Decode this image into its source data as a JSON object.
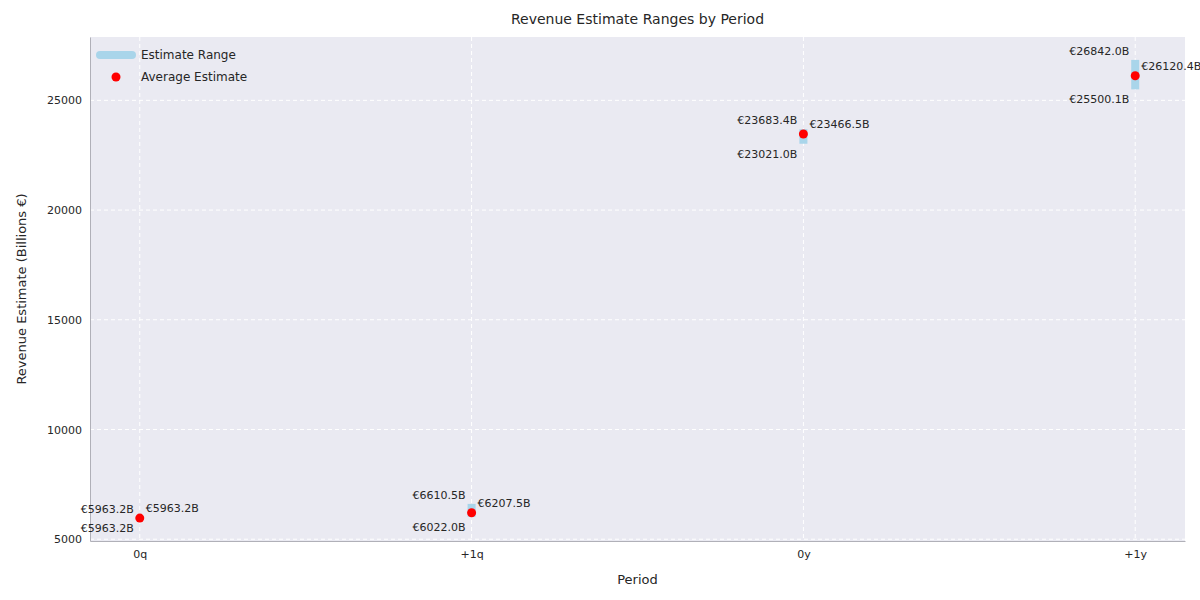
{
  "chart_data": {
    "type": "range",
    "title": "Revenue Estimate Ranges by Period",
    "x_label": "Period",
    "y_label": "Revenue Estimate (Billions €)",
    "categories": [
      "0q",
      "+1q",
      "0y",
      "+1y"
    ],
    "series": [
      {
        "name": "Estimate Range",
        "color": "#a9d5ea",
        "type": "range",
        "low": [
          5963.2,
          6022.0,
          23021.0,
          25500.1
        ],
        "high": [
          5963.2,
          6610.5,
          23683.4,
          26842.0
        ],
        "low_labels": [
          "€5963.2B",
          "€6022.0B",
          "€23021.0B",
          "€25500.1B"
        ],
        "high_labels": [
          "€5963.2B",
          "€6610.5B",
          "€23683.4B",
          "€26842.0B"
        ]
      },
      {
        "name": "Average Estimate",
        "color": "#ff0000",
        "type": "scatter",
        "marker": "circle",
        "values": [
          5963.2,
          6207.5,
          23466.5,
          26120.4
        ],
        "value_labels": [
          "€5963.2B",
          "€6207.5B",
          "€23466.5B",
          "€26120.4B"
        ]
      }
    ],
    "ylim": [
      4919.3,
      27885.9
    ],
    "yticks": [
      5000,
      10000,
      15000,
      20000,
      25000
    ],
    "grid": true,
    "legend": "upper left",
    "data_labels": true
  }
}
